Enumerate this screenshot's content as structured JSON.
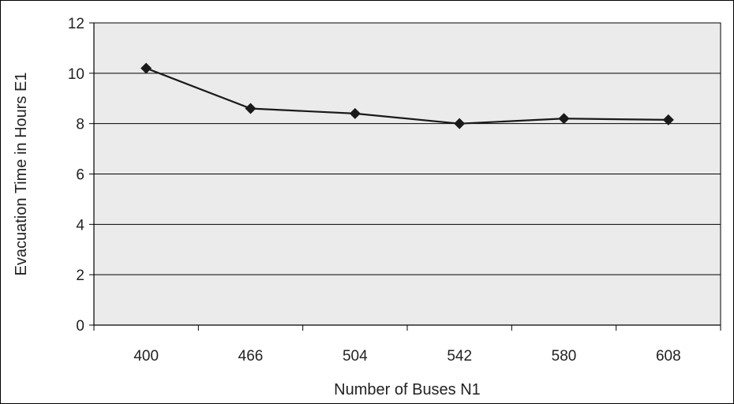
{
  "chart_data": {
    "type": "line",
    "title": "",
    "xlabel": "Number of Buses N1",
    "ylabel": "Evacuation Time in Hours E1",
    "categories": [
      "400",
      "466",
      "504",
      "542",
      "580",
      "608"
    ],
    "series": [
      {
        "values": [
          10.2,
          8.6,
          8.4,
          8.0,
          8.2,
          8.15
        ]
      }
    ],
    "ylim": [
      0,
      12
    ],
    "yticks": [
      "0",
      "2",
      "4",
      "6",
      "8",
      "10",
      "12"
    ],
    "grid": true,
    "legend": "none",
    "colors": {
      "plot_background": "#ebebeb",
      "line": "#1a1a1a",
      "marker": "#1a1a1a",
      "gridline": "#000000"
    }
  }
}
